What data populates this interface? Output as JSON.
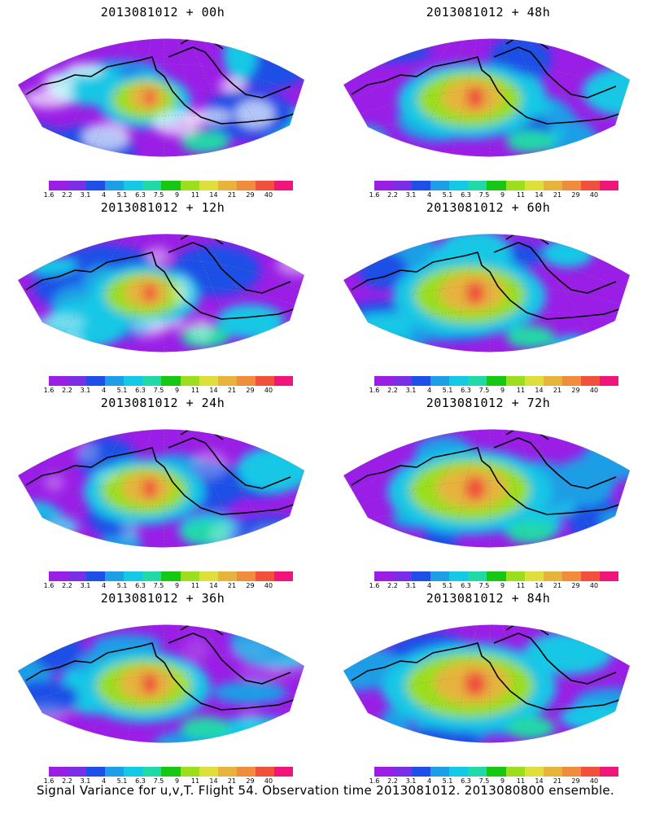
{
  "panels": [
    {
      "title": "2013081012 + 00h",
      "hot": 0.18
    },
    {
      "title": "2013081012 + 48h",
      "hot": 0.62
    },
    {
      "title": "2013081012 + 12h",
      "hot": 0.33
    },
    {
      "title": "2013081012 + 60h",
      "hot": 0.7
    },
    {
      "title": "2013081012 + 24h",
      "hot": 0.42
    },
    {
      "title": "2013081012 + 72h",
      "hot": 0.8
    },
    {
      "title": "2013081012 + 36h",
      "hot": 0.52
    },
    {
      "title": "2013081012 + 84h",
      "hot": 0.88
    }
  ],
  "colorbar": {
    "labels": [
      "1.6",
      "2.2",
      "3.1",
      "4",
      "5.1",
      "6.3",
      "7.5",
      "9",
      "11",
      "14",
      "21",
      "29",
      "40"
    ],
    "colors": [
      "#9a1ee6",
      "#7a2ee6",
      "#1e4fe6",
      "#1e9ee6",
      "#14c8e6",
      "#20d8a8",
      "#14c814",
      "#9ade1e",
      "#dede3c",
      "#e6b43c",
      "#f08c3c",
      "#f0503c",
      "#f0147c"
    ]
  },
  "caption": "Signal Variance for u,v,T. Flight 54. Observation time 2013081012. 2013080800 ensemble."
}
